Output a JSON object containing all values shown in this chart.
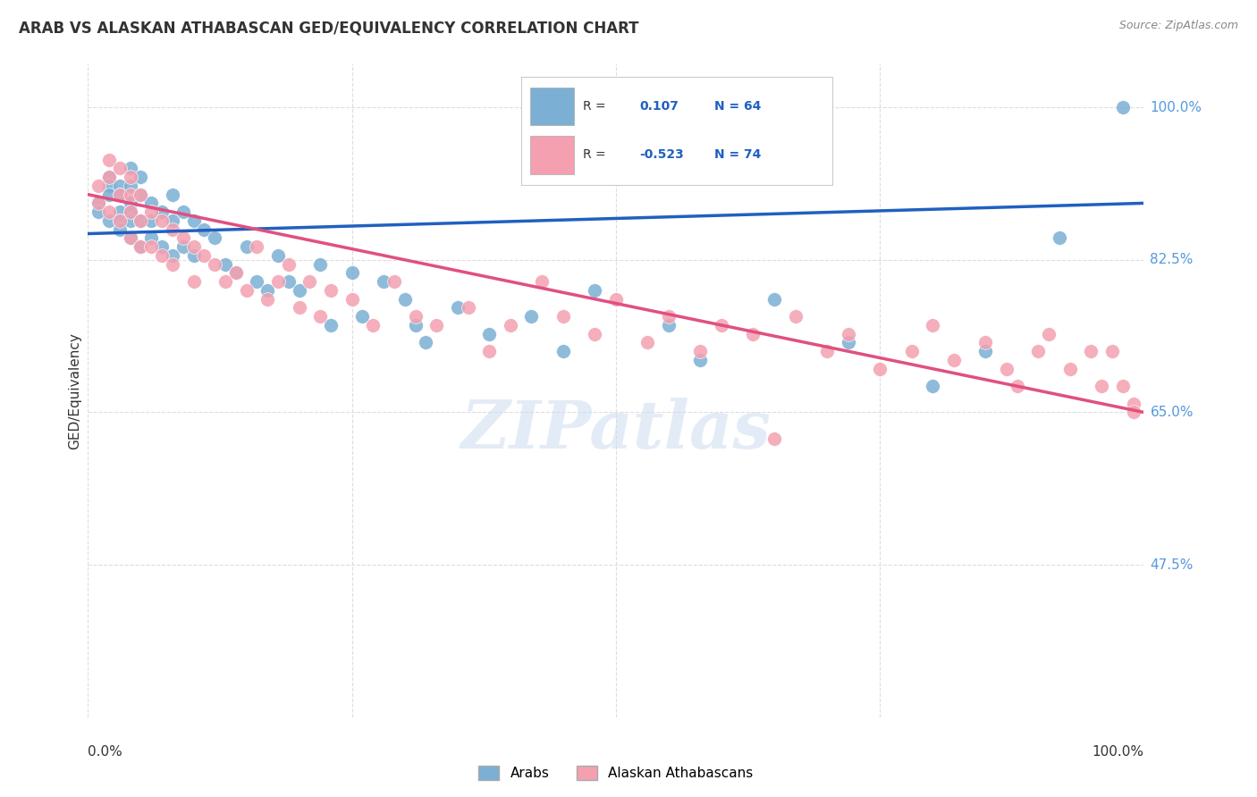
{
  "title": "ARAB VS ALASKAN ATHABASCAN GED/EQUIVALENCY CORRELATION CHART",
  "source": "Source: ZipAtlas.com",
  "ylabel": "GED/Equivalency",
  "yaxis_labels": [
    "100.0%",
    "82.5%",
    "65.0%",
    "47.5%"
  ],
  "yaxis_values": [
    1.0,
    0.825,
    0.65,
    0.475
  ],
  "blue_R": 0.107,
  "blue_N": 64,
  "pink_R": -0.523,
  "pink_N": 74,
  "blue_color": "#7bafd4",
  "pink_color": "#f4a0b0",
  "blue_line_color": "#2060c0",
  "pink_line_color": "#e05080",
  "legend_label_blue": "Arabs",
  "legend_label_pink": "Alaskan Athabascans",
  "background_color": "#ffffff",
  "grid_color": "#dddddd",
  "right_label_color": "#5599dd",
  "blue_scatter_x": [
    0.01,
    0.01,
    0.02,
    0.02,
    0.02,
    0.02,
    0.03,
    0.03,
    0.03,
    0.03,
    0.03,
    0.04,
    0.04,
    0.04,
    0.04,
    0.04,
    0.04,
    0.05,
    0.05,
    0.05,
    0.05,
    0.06,
    0.06,
    0.06,
    0.07,
    0.07,
    0.08,
    0.08,
    0.08,
    0.09,
    0.09,
    0.1,
    0.1,
    0.11,
    0.12,
    0.13,
    0.14,
    0.15,
    0.16,
    0.17,
    0.18,
    0.19,
    0.2,
    0.22,
    0.23,
    0.25,
    0.26,
    0.28,
    0.3,
    0.31,
    0.32,
    0.35,
    0.38,
    0.42,
    0.45,
    0.48,
    0.55,
    0.58,
    0.65,
    0.72,
    0.8,
    0.85,
    0.92,
    0.98
  ],
  "blue_scatter_y": [
    0.89,
    0.88,
    0.92,
    0.91,
    0.9,
    0.87,
    0.91,
    0.9,
    0.88,
    0.87,
    0.86,
    0.93,
    0.91,
    0.89,
    0.88,
    0.87,
    0.85,
    0.92,
    0.9,
    0.87,
    0.84,
    0.89,
    0.87,
    0.85,
    0.88,
    0.84,
    0.9,
    0.87,
    0.83,
    0.88,
    0.84,
    0.87,
    0.83,
    0.86,
    0.85,
    0.82,
    0.81,
    0.84,
    0.8,
    0.79,
    0.83,
    0.8,
    0.79,
    0.82,
    0.75,
    0.81,
    0.76,
    0.8,
    0.78,
    0.75,
    0.73,
    0.77,
    0.74,
    0.76,
    0.72,
    0.79,
    0.75,
    0.71,
    0.78,
    0.73,
    0.68,
    0.72,
    0.85,
    1.0
  ],
  "pink_scatter_x": [
    0.01,
    0.01,
    0.02,
    0.02,
    0.02,
    0.03,
    0.03,
    0.03,
    0.04,
    0.04,
    0.04,
    0.04,
    0.05,
    0.05,
    0.05,
    0.06,
    0.06,
    0.07,
    0.07,
    0.08,
    0.08,
    0.09,
    0.1,
    0.1,
    0.11,
    0.12,
    0.13,
    0.14,
    0.15,
    0.16,
    0.17,
    0.18,
    0.19,
    0.2,
    0.21,
    0.22,
    0.23,
    0.25,
    0.27,
    0.29,
    0.31,
    0.33,
    0.36,
    0.38,
    0.4,
    0.43,
    0.45,
    0.48,
    0.5,
    0.53,
    0.55,
    0.58,
    0.6,
    0.63,
    0.65,
    0.67,
    0.7,
    0.72,
    0.75,
    0.78,
    0.8,
    0.82,
    0.85,
    0.87,
    0.88,
    0.9,
    0.91,
    0.93,
    0.95,
    0.96,
    0.97,
    0.98,
    0.99,
    0.99
  ],
  "pink_scatter_y": [
    0.91,
    0.89,
    0.94,
    0.92,
    0.88,
    0.93,
    0.9,
    0.87,
    0.92,
    0.9,
    0.88,
    0.85,
    0.9,
    0.87,
    0.84,
    0.88,
    0.84,
    0.87,
    0.83,
    0.86,
    0.82,
    0.85,
    0.84,
    0.8,
    0.83,
    0.82,
    0.8,
    0.81,
    0.79,
    0.84,
    0.78,
    0.8,
    0.82,
    0.77,
    0.8,
    0.76,
    0.79,
    0.78,
    0.75,
    0.8,
    0.76,
    0.75,
    0.77,
    0.72,
    0.75,
    0.8,
    0.76,
    0.74,
    0.78,
    0.73,
    0.76,
    0.72,
    0.75,
    0.74,
    0.62,
    0.76,
    0.72,
    0.74,
    0.7,
    0.72,
    0.75,
    0.71,
    0.73,
    0.7,
    0.68,
    0.72,
    0.74,
    0.7,
    0.72,
    0.68,
    0.72,
    0.68,
    0.66,
    0.65
  ],
  "blue_trend_y_start": 0.855,
  "blue_trend_y_end": 0.89,
  "pink_trend_y_start": 0.9,
  "pink_trend_y_end": 0.65,
  "xlim": [
    0.0,
    1.0
  ],
  "ylim": [
    0.3,
    1.05
  ]
}
